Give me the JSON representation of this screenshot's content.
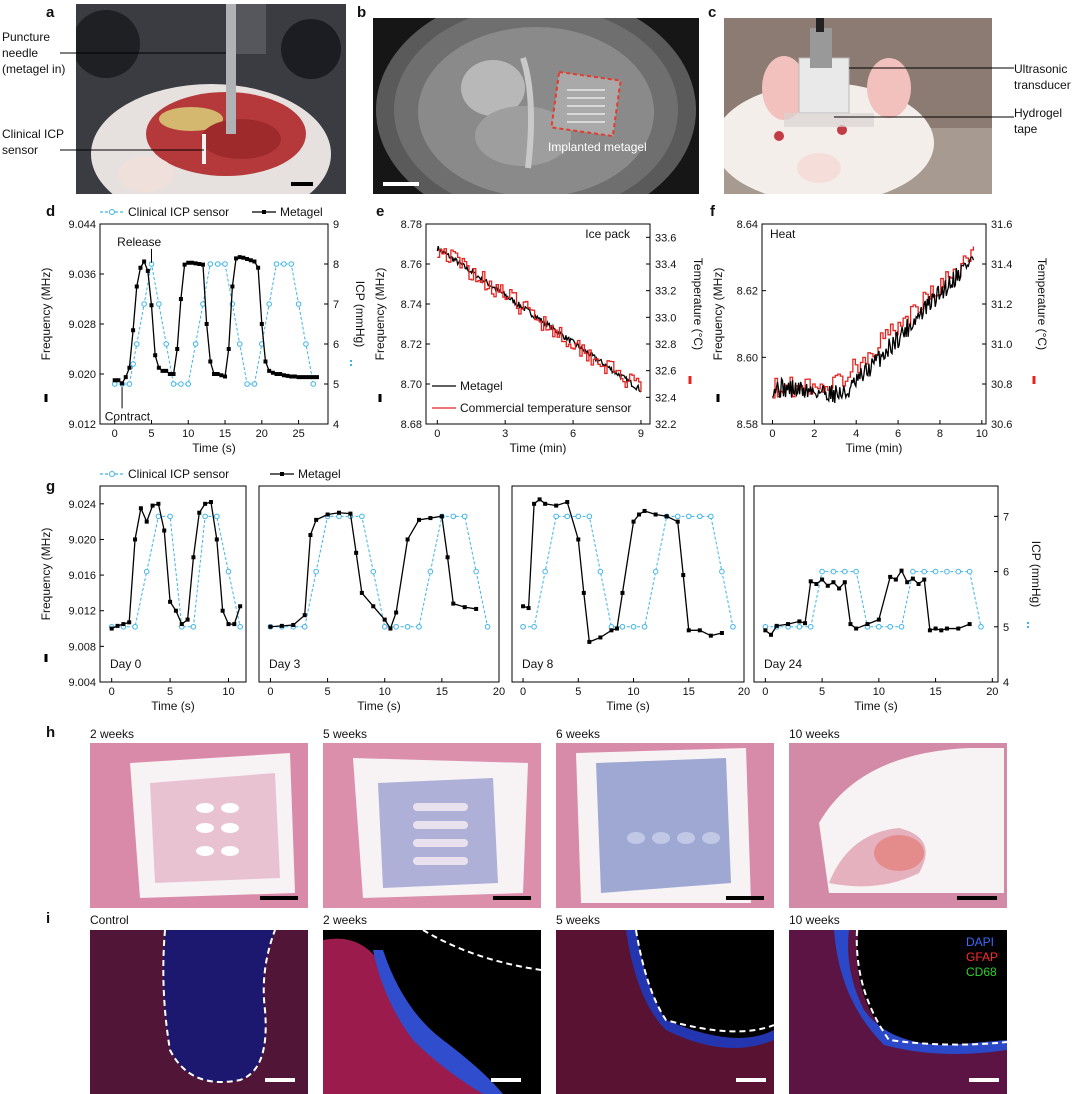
{
  "panels": {
    "a": {
      "letter": "a",
      "labels": [
        "Puncture",
        "needle",
        "(metagel in)",
        "Clinical ICP",
        "sensor"
      ],
      "photo_colors": {
        "bg": "#3b3d44",
        "tissue": "#b23a37",
        "fur": "#e8e4e1",
        "needle": "#a5a7aa"
      }
    },
    "b": {
      "letter": "b",
      "label": "Implanted metagel"
    },
    "c": {
      "letter": "c",
      "labels": [
        "Ultrasonic",
        "transducer",
        "Hydrogel",
        "tape"
      ]
    },
    "h": {
      "letter": "h",
      "titles": [
        "2 weeks",
        "5 weeks",
        "6 weeks",
        "10 weeks"
      ]
    },
    "i": {
      "letter": "i",
      "titles": [
        "Control",
        "2 weeks",
        "5 weeks",
        "10 weeks"
      ],
      "legend": [
        "DAPI",
        "GFAP",
        "CD68"
      ],
      "legend_colors": [
        "#3a6bff",
        "#ff2b2b",
        "#2bd12b"
      ]
    }
  },
  "chart_data": [
    {
      "id": "d",
      "letter": "d",
      "type": "line",
      "legend": [
        "Clinical ICP sensor",
        "Metagel"
      ],
      "colors": {
        "metagel": "#000000",
        "icp": "#3fb4e8"
      },
      "xlabel": "Time (s)",
      "ylabel": "Frequency (MHz)",
      "y2label": "ICP (mmHg)",
      "xlim": [
        -2,
        29
      ],
      "ylim": [
        9.012,
        9.044
      ],
      "y2lim": [
        4,
        9
      ],
      "xticks": [
        0,
        5,
        10,
        15,
        20,
        25
      ],
      "xtick_labels": [
        "0",
        "5",
        "10",
        "15",
        "20",
        "25"
      ],
      "yticks": [
        9.012,
        9.02,
        9.028,
        9.036,
        9.044
      ],
      "ytick_labels": [
        "9.012",
        "9.020",
        "9.028",
        "9.036",
        "9.044"
      ],
      "y2ticks": [
        4,
        5,
        6,
        7,
        8,
        9
      ],
      "y2tick_labels": [
        "4",
        "5",
        "6",
        "7",
        "8",
        "9"
      ],
      "annotations": [
        {
          "text": "Release",
          "x": 3.6,
          "y": 9.0405
        },
        {
          "text": "Contract",
          "x": 2.0,
          "y": 9.0145
        }
      ],
      "series": [
        {
          "name": "Metagel",
          "axis": "y",
          "x": [
            0,
            0.5,
            1,
            1.5,
            2,
            2.5,
            3,
            3.5,
            4,
            4.5,
            5,
            5.5,
            6,
            6.5,
            7,
            7.5,
            8,
            8.5,
            9,
            9.5,
            10,
            10.5,
            11,
            11.5,
            12,
            12.5,
            13,
            13.5,
            14,
            14.5,
            15,
            15.5,
            16,
            16.5,
            17,
            17.5,
            18,
            18.5,
            19,
            19.5,
            20,
            20.5,
            21,
            21.5,
            22,
            22.5,
            23,
            23.5,
            24,
            24.5,
            25,
            25.5,
            26,
            26.5,
            27,
            27.5
          ],
          "y": [
            9.019,
            9.019,
            9.0185,
            9.0195,
            9.021,
            9.027,
            9.034,
            9.037,
            9.038,
            9.0365,
            9.031,
            9.023,
            9.021,
            9.0205,
            9.0205,
            9.02,
            9.02,
            9.024,
            9.032,
            9.0375,
            9.0378,
            9.0378,
            9.0377,
            9.0376,
            9.0375,
            9.028,
            9.022,
            9.02,
            9.02,
            9.0198,
            9.0196,
            9.024,
            9.034,
            9.0385,
            9.0387,
            9.0386,
            9.0384,
            9.0382,
            9.038,
            9.037,
            9.028,
            9.022,
            9.0205,
            9.0202,
            9.02,
            9.02,
            9.0198,
            9.0197,
            9.0196,
            9.0196,
            9.0195,
            9.0195,
            9.0195,
            9.0195,
            9.0195,
            9.0195
          ]
        },
        {
          "name": "Clinical ICP sensor",
          "axis": "y2",
          "x": [
            0,
            1,
            2,
            2.5,
            3,
            4,
            5,
            6,
            7,
            8,
            9,
            10,
            11,
            12,
            13,
            14,
            15,
            16,
            17,
            18,
            19,
            20,
            21,
            22,
            23,
            24,
            25,
            26,
            27
          ],
          "y": [
            5,
            5,
            5,
            5.5,
            6,
            7,
            8,
            7,
            6,
            5,
            5,
            5,
            6,
            7,
            8,
            8,
            8,
            7,
            6,
            5,
            5,
            6,
            7,
            8,
            8,
            8,
            7,
            6,
            5
          ]
        }
      ]
    },
    {
      "id": "e",
      "letter": "e",
      "type": "line",
      "legend": [
        "Metagel",
        "Commercial temperature sensor"
      ],
      "colors": {
        "metagel": "#000000",
        "temp": "#e52421"
      },
      "annotation": "Ice pack",
      "xlabel": "Time (min)",
      "ylabel": "Frequency (MHz)",
      "y2label": "Temperature (°C)",
      "xlim": [
        -0.5,
        9.4
      ],
      "ylim": [
        8.68,
        8.78
      ],
      "y2lim": [
        32.2,
        33.7
      ],
      "xticks": [
        0,
        3,
        6,
        9
      ],
      "xtick_labels": [
        "0",
        "3",
        "6",
        "9"
      ],
      "yticks": [
        8.68,
        8.7,
        8.72,
        8.74,
        8.76,
        8.78
      ],
      "ytick_labels": [
        "8.68",
        "8.70",
        "8.72",
        "8.74",
        "8.76",
        "8.78"
      ],
      "y2ticks": [
        32.2,
        32.4,
        32.6,
        32.8,
        33.0,
        33.2,
        33.4,
        33.6
      ],
      "y2tick_labels": [
        "32.2",
        "32.4",
        "32.6",
        "32.8",
        "33.0",
        "33.2",
        "33.4",
        "33.6"
      ],
      "series": [
        {
          "name": "Metagel",
          "axis": "y",
          "x": [
            0,
            9
          ],
          "y": [
            8.768,
            8.697
          ],
          "noise": 0.0015
        },
        {
          "name": "Commercial temperature sensor",
          "axis": "y2",
          "x": [
            0,
            9
          ],
          "y": [
            33.52,
            32.45
          ],
          "noise": 0.07
        }
      ]
    },
    {
      "id": "f",
      "letter": "f",
      "type": "line",
      "annotation": "Heat",
      "colors": {
        "metagel": "#000000",
        "temp": "#e52421"
      },
      "xlabel": "Time (min)",
      "ylabel": "Frequency (MHz)",
      "y2label": "Temperature (°C)",
      "xlim": [
        -0.5,
        10.2
      ],
      "ylim": [
        8.58,
        8.64
      ],
      "y2lim": [
        30.6,
        31.6
      ],
      "xticks": [
        0,
        2,
        4,
        6,
        8,
        10
      ],
      "xtick_labels": [
        "0",
        "2",
        "4",
        "6",
        "8",
        "10"
      ],
      "yticks": [
        8.58,
        8.6,
        8.62,
        8.64
      ],
      "ytick_labels": [
        "8.58",
        "8.60",
        "8.62",
        "8.64"
      ],
      "y2ticks": [
        30.6,
        30.8,
        31.0,
        31.2,
        31.4,
        31.6
      ],
      "y2tick_labels": [
        "30.6",
        "30.8",
        "31.0",
        "31.2",
        "31.4",
        "31.6"
      ],
      "series": [
        {
          "name": "Metagel",
          "axis": "y",
          "x": [
            0,
            3.5,
            9.6
          ],
          "y": [
            8.591,
            8.589,
            8.63
          ],
          "noise": 0.003
        },
        {
          "name": "Temperature",
          "axis": "y2",
          "x": [
            0,
            3.0,
            9.6
          ],
          "y": [
            30.78,
            30.8,
            31.45
          ],
          "noise": 0.05
        }
      ]
    },
    {
      "id": "g",
      "letter": "g",
      "type": "line",
      "legend": [
        "Clinical ICP sensor",
        "Metagel"
      ],
      "colors": {
        "metagel": "#000000",
        "icp": "#3fb4e8"
      },
      "xlabel": "Time (s)",
      "ylabel": "Frequency (MHz)",
      "y2label": "ICP (mmHg)",
      "ylim": [
        9.004,
        9.026
      ],
      "y2lim": [
        4,
        7.55
      ],
      "yticks": [
        9.004,
        9.008,
        9.012,
        9.016,
        9.02,
        9.024
      ],
      "ytick_labels": [
        "9.004",
        "9.008",
        "9.012",
        "9.016",
        "9.020",
        "9.024"
      ],
      "y2ticks": [
        4,
        5,
        6,
        7
      ],
      "y2tick_labels": [
        "4",
        "5",
        "6",
        "7"
      ],
      "subplots": [
        {
          "day": "Day 0",
          "xlim": [
            -1,
            11.5
          ],
          "xticks": [
            0,
            5,
            10
          ],
          "xtick_labels": [
            "0",
            "5",
            "10"
          ],
          "metagel": {
            "x": [
              0,
              0.5,
              1,
              1.5,
              2,
              2.5,
              3,
              3.5,
              4,
              4.5,
              5,
              5.5,
              6,
              6.5,
              7,
              7.5,
              8,
              8.5,
              9,
              9.5,
              10,
              10.5,
              11
            ],
            "y": [
              9.01,
              9.0103,
              9.0105,
              9.0107,
              9.02,
              9.0235,
              9.022,
              9.0238,
              9.024,
              9.021,
              9.013,
              9.012,
              9.0105,
              9.011,
              9.018,
              9.023,
              9.024,
              9.0242,
              9.02,
              9.012,
              9.0105,
              9.0105,
              9.0125
            ]
          },
          "icp": {
            "x": [
              0,
              1,
              2,
              3,
              4,
              5,
              6,
              7,
              8,
              9,
              10,
              11
            ],
            "y": [
              5,
              5,
              5,
              6,
              7,
              7,
              5,
              5,
              7,
              7,
              6,
              5
            ]
          }
        },
        {
          "day": "Day 3",
          "xlim": [
            -1,
            20
          ],
          "xticks": [
            0,
            5,
            10,
            15,
            20
          ],
          "xtick_labels": [
            "0",
            "5",
            "10",
            "15",
            "20"
          ],
          "metagel": {
            "x": [
              0,
              1,
              2,
              3,
              3.5,
              4,
              5,
              6,
              7,
              7.5,
              8,
              9,
              10,
              10.5,
              11,
              12,
              13,
              14,
              15,
              15.5,
              16,
              17,
              18
            ],
            "y": [
              9.0102,
              9.0103,
              9.0104,
              9.0115,
              9.0205,
              9.0222,
              9.0228,
              9.023,
              9.0229,
              9.0185,
              9.014,
              9.0125,
              9.011,
              9.01,
              9.0118,
              9.02,
              9.0222,
              9.0224,
              9.0226,
              9.018,
              9.0128,
              9.0124,
              9.0122
            ]
          },
          "icp": {
            "x": [
              0,
              1,
              2,
              3,
              4,
              5,
              6,
              7,
              8,
              9,
              10,
              11,
              12,
              13,
              14,
              15,
              16,
              17,
              18,
              19
            ],
            "y": [
              5,
              5,
              5,
              5,
              6,
              7,
              7,
              7,
              7,
              6,
              5,
              5,
              5,
              5,
              6,
              7,
              7,
              7,
              6,
              5
            ]
          }
        },
        {
          "day": "Day 8",
          "xlim": [
            -1,
            20
          ],
          "xticks": [
            0,
            5,
            10,
            15,
            20
          ],
          "xtick_labels": [
            "0",
            "5",
            "10",
            "15",
            "20"
          ],
          "metagel": {
            "x": [
              0,
              0.5,
              1,
              1.5,
              2,
              3,
              4,
              5,
              5.5,
              6,
              7,
              8,
              8.5,
              9,
              10,
              10.5,
              11,
              12,
              13,
              14,
              14.5,
              15,
              16,
              17,
              18
            ],
            "y": [
              9.0125,
              9.0123,
              9.024,
              9.0245,
              9.024,
              9.0238,
              9.0242,
              9.02,
              9.014,
              9.0085,
              9.009,
              9.0098,
              9.01,
              9.014,
              9.022,
              9.0228,
              9.0232,
              9.0228,
              9.0226,
              9.022,
              9.016,
              9.0098,
              9.0098,
              9.0092,
              9.0095
            ]
          },
          "icp": {
            "x": [
              0,
              1,
              2,
              3,
              4,
              5,
              6,
              7,
              8,
              9,
              10,
              11,
              12,
              13,
              14,
              15,
              16,
              17,
              18,
              19
            ],
            "y": [
              5,
              5,
              6,
              7,
              7,
              7,
              7,
              6,
              5,
              5,
              5,
              5,
              6,
              7,
              7,
              7,
              7,
              7,
              6,
              5
            ]
          }
        },
        {
          "day": "Day 24",
          "xlim": [
            -1,
            20.5
          ],
          "xticks": [
            0,
            5,
            10,
            15,
            20
          ],
          "xtick_labels": [
            "0",
            "5",
            "10",
            "15",
            "20"
          ],
          "metagel": {
            "x": [
              0,
              0.5,
              1,
              2,
              3,
              3.5,
              4,
              4.5,
              5,
              5.5,
              6,
              6.5,
              7,
              7.5,
              8,
              9,
              10,
              11,
              11.5,
              12,
              12.5,
              13,
              13.5,
              14,
              14.5,
              15,
              15.5,
              16,
              17,
              18
            ],
            "y": [
              9.0098,
              9.0093,
              9.0103,
              9.0105,
              9.0108,
              9.0106,
              9.0153,
              9.015,
              9.0155,
              9.0148,
              9.0152,
              9.0145,
              9.0152,
              9.0105,
              9.01,
              9.0105,
              9.011,
              9.0158,
              9.0155,
              9.0165,
              9.0152,
              9.0156,
              9.015,
              9.0155,
              9.0098,
              9.01,
              9.0098,
              9.01,
              9.01,
              9.0105
            ]
          },
          "icp": {
            "x": [
              0,
              1,
              2,
              3,
              4,
              5,
              6,
              7,
              8,
              9,
              10,
              11,
              12,
              13,
              14,
              15,
              16,
              17,
              18,
              19
            ],
            "y": [
              5,
              5,
              5,
              5,
              5,
              6,
              6,
              6,
              6,
              5,
              5,
              5,
              5,
              6,
              6,
              6,
              6,
              6,
              6,
              5
            ]
          }
        }
      ]
    }
  ]
}
